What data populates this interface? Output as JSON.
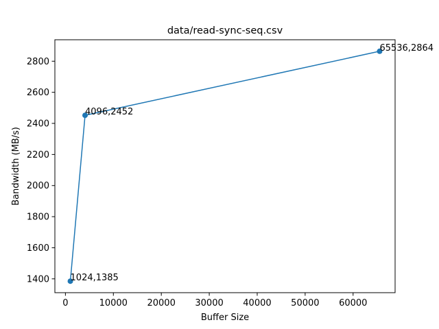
{
  "chart_data": {
    "type": "line",
    "title": "data/read-sync-seq.csv",
    "xlabel": "Buffer Size",
    "ylabel": "Bandwidth (MB/s)",
    "xlim": [
      -2201,
      68761
    ],
    "ylim": [
      1311,
      2938
    ],
    "xticks": [
      0,
      10000,
      20000,
      30000,
      40000,
      50000,
      60000
    ],
    "yticks": [
      1400,
      1600,
      1800,
      2000,
      2200,
      2400,
      2600,
      2800
    ],
    "grid": false,
    "legend": "none",
    "series": [
      {
        "color": "#1f77b4",
        "marker": "circle",
        "points": [
          {
            "x": 1024,
            "y": 1385,
            "label": "1024,1385"
          },
          {
            "x": 4096,
            "y": 2452,
            "label": "4096,2452"
          },
          {
            "x": 65536,
            "y": 2864,
            "label": "65536,2864"
          }
        ]
      }
    ]
  }
}
